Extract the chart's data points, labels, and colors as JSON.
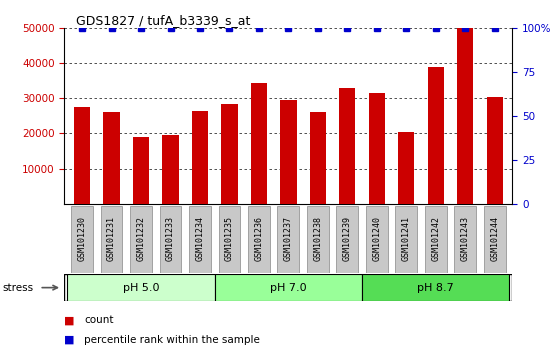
{
  "title": "GDS1827 / tufA_b3339_s_at",
  "samples": [
    "GSM101230",
    "GSM101231",
    "GSM101232",
    "GSM101233",
    "GSM101234",
    "GSM101235",
    "GSM101236",
    "GSM101237",
    "GSM101238",
    "GSM101239",
    "GSM101240",
    "GSM101241",
    "GSM101242",
    "GSM101243",
    "GSM101244"
  ],
  "counts": [
    27500,
    26000,
    19000,
    19500,
    26500,
    28500,
    34500,
    29500,
    26000,
    33000,
    31500,
    20500,
    39000,
    50000,
    30500
  ],
  "percentile": [
    100,
    100,
    100,
    100,
    100,
    100,
    100,
    100,
    100,
    100,
    100,
    100,
    100,
    100,
    100
  ],
  "bar_color": "#cc0000",
  "percentile_color": "#0000cc",
  "ylim_left": [
    0,
    50000
  ],
  "ylim_right": [
    0,
    100
  ],
  "yticks_left": [
    10000,
    20000,
    30000,
    40000,
    50000
  ],
  "yticks_right": [
    0,
    25,
    50,
    75,
    100
  ],
  "ytick_labels_right": [
    "0",
    "25",
    "50",
    "75",
    "100%"
  ],
  "groups": [
    {
      "label": "pH 5.0",
      "start": 0,
      "end": 4,
      "color": "#ccffcc"
    },
    {
      "label": "pH 7.0",
      "start": 5,
      "end": 9,
      "color": "#99ff99"
    },
    {
      "label": "pH 8.7",
      "start": 10,
      "end": 14,
      "color": "#55dd55"
    }
  ],
  "stress_label": "stress",
  "left_axis_color": "#cc0000",
  "right_axis_color": "#0000cc",
  "grid_color": "#000000",
  "background_color": "#ffffff",
  "sample_bg_color": "#c8c8c8",
  "legend_count_color": "#cc0000",
  "legend_percentile_color": "#0000cc",
  "group_border_color": "#000000",
  "bar_width": 0.55
}
